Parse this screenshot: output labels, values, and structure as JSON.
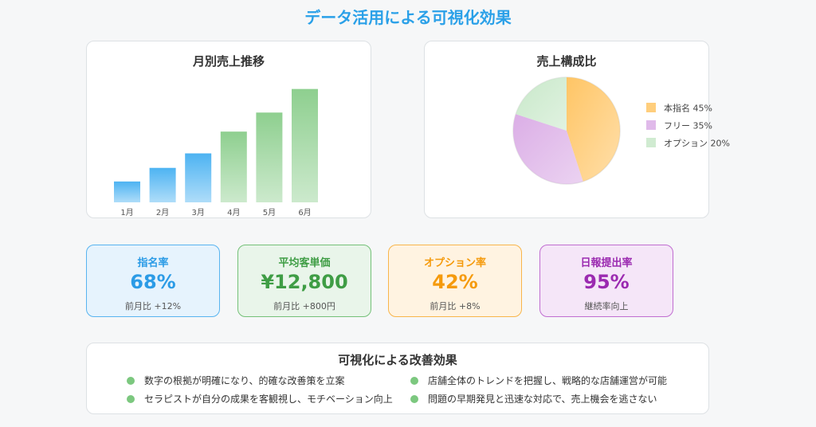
{
  "page": {
    "title": "データ活用による可視化効果"
  },
  "chart_data": [
    {
      "type": "bar",
      "title": "月別売上推移",
      "categories": [
        "1月",
        "2月",
        "3月",
        "4月",
        "5月",
        "6月"
      ],
      "values": [
        23,
        38,
        54,
        78,
        99,
        125
      ],
      "bar_colors": [
        "#4db3f2",
        "#4db3f2",
        "#4db3f2",
        "#8ecf8f",
        "#8ecf8f",
        "#8ecf8f"
      ],
      "ylim": [
        0,
        130
      ],
      "grid": false
    },
    {
      "type": "pie",
      "title": "売上構成比",
      "slices": [
        {
          "label": "本指名 45%",
          "value": 45,
          "color": "#ffc565"
        },
        {
          "label": "フリー 35%",
          "value": 35,
          "color": "#dbaee6"
        },
        {
          "label": "オプション 20%",
          "value": 20,
          "color": "#c8e8c9"
        }
      ],
      "legend": "right"
    }
  ],
  "kpis": [
    {
      "label": "指名率",
      "value": "68%",
      "sub": "前月比 +12%",
      "color": "#2b9be6",
      "bg": "#e6f3fd",
      "border": "#58b4f0"
    },
    {
      "label": "平均客単価",
      "value": "¥12,800",
      "sub": "前月比 +800円",
      "color": "#3f9d45",
      "bg": "#e9f5ea",
      "border": "#74c178"
    },
    {
      "label": "オプション率",
      "value": "42%",
      "sub": "前月比 +8%",
      "color": "#f59a0c",
      "bg": "#fff3e1",
      "border": "#f8b54a"
    },
    {
      "label": "日報提出率",
      "value": "95%",
      "sub": "継続率向上",
      "color": "#9b2ab0",
      "bg": "#f5e6f8",
      "border": "#c06dd0"
    }
  ],
  "improvements": {
    "title": "可視化による改善効果",
    "items": [
      "数字の根拠が明確になり、的確な改善策を立案",
      "店舗全体のトレンドを把握し、戦略的な店舗運営が可能",
      "セラピストが自分の成果を客観視し、モチベーション向上",
      "問題の早期発見と迅速な対応で、売上機会を逃さない"
    ],
    "dot_color": "#7cc87f"
  }
}
